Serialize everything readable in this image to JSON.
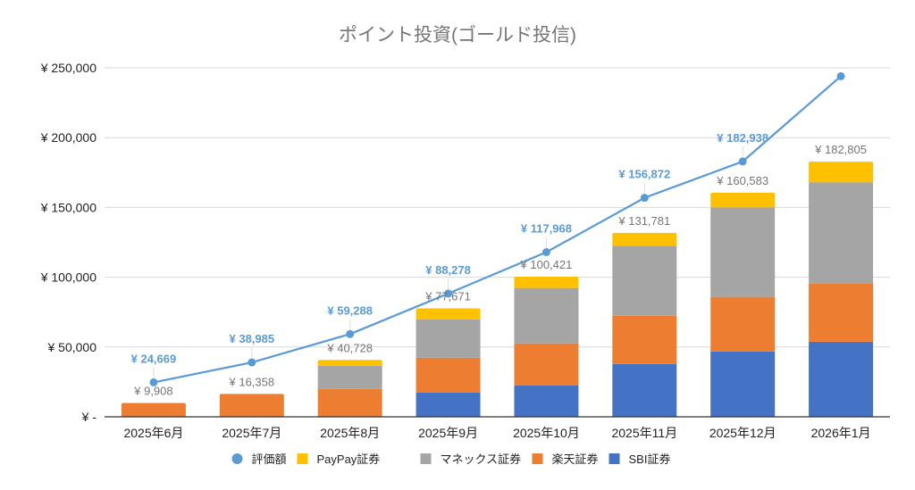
{
  "chart_data": {
    "type": "bar",
    "subtype": "stacked-bar-with-line",
    "title": "ポイント投資(ゴールド投信)",
    "xlabel": "",
    "ylabel": "",
    "ylim": [
      0,
      250000
    ],
    "yticks": [
      0,
      50000,
      100000,
      150000,
      200000,
      250000
    ],
    "ytick_labels": [
      "¥ -",
      "¥ 50,000",
      "¥ 100,000",
      "¥ 150,000",
      "¥ 200,000",
      "¥ 250,000"
    ],
    "grid": true,
    "legend_position": "bottom",
    "categories": [
      "2025年6月",
      "2025年7月",
      "2025年8月",
      "2025年9月",
      "2025年10月",
      "2025年11月",
      "2025年12月",
      "2026年1月"
    ],
    "series": [
      {
        "name": "SBI証券",
        "type": "bar",
        "color": "#4472c4",
        "values": [
          0,
          0,
          0,
          17300,
          22400,
          37800,
          46800,
          53800
        ]
      },
      {
        "name": "楽天証券",
        "type": "bar",
        "color": "#ed7d31",
        "values": [
          9908,
          16358,
          20000,
          25000,
          30200,
          34600,
          39100,
          41700
        ]
      },
      {
        "name": "マネックス証券",
        "type": "bar",
        "color": "#a5a5a5",
        "values": [
          0,
          0,
          16500,
          27500,
          39700,
          50000,
          64100,
          72500
        ]
      },
      {
        "name": "PayPay証券",
        "type": "bar",
        "color": "#ffc000",
        "values": [
          0,
          0,
          4228,
          7871,
          8121,
          9381,
          10583,
          14805
        ]
      },
      {
        "name": "評価額",
        "type": "line",
        "color": "#5b9bd5",
        "values": [
          24669,
          38985,
          59288,
          88278,
          117968,
          156872,
          182938,
          244000
        ]
      }
    ],
    "bar_total_labels": [
      "¥ 9,908",
      "¥ 16,358",
      "¥ 40,728",
      "¥ 77,671",
      "¥ 100,421",
      "¥ 131,781",
      "¥ 160,583",
      "¥ 182,805"
    ],
    "line_labels": [
      "¥ 24,669",
      "¥ 38,985",
      "¥ 59,288",
      "¥ 88,278",
      "¥ 117,968",
      "¥ 156,872",
      "¥ 182,938",
      ""
    ],
    "legend": [
      {
        "name": "評価額",
        "shape": "circle",
        "color": "#5b9bd5"
      },
      {
        "name": "PayPay証券",
        "shape": "square",
        "color": "#ffc000"
      },
      {
        "name": "マネックス証券",
        "shape": "square",
        "color": "#a5a5a5"
      },
      {
        "name": "楽天証券",
        "shape": "square",
        "color": "#ed7d31"
      },
      {
        "name": "SBI証券",
        "shape": "square",
        "color": "#4472c4"
      }
    ]
  }
}
